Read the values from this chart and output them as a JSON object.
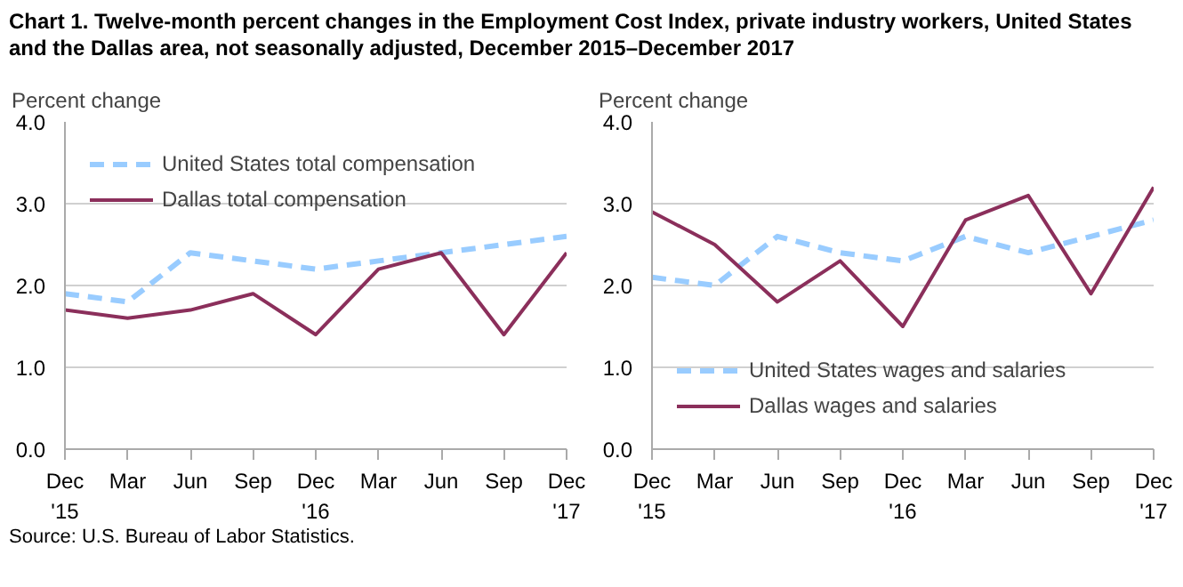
{
  "chart_data": [
    {
      "type": "line",
      "title": "Chart 1. Twelve-month percent changes in the Employment Cost Index, private industry workers, United States and the Dallas area, not seasonally adjusted, December 2015–December 2017",
      "ylabel": "Percent change",
      "categories": [
        "Dec\n'15",
        "Mar",
        "Jun",
        "Sep",
        "Dec\n'16",
        "Mar",
        "Jun",
        "Sep",
        "Dec\n'17"
      ],
      "series": [
        {
          "name": "United States total compensation",
          "color": "#99ccff",
          "line_style": "dashed",
          "values": [
            1.9,
            1.8,
            2.4,
            2.3,
            2.2,
            2.3,
            2.4,
            2.5,
            2.6
          ]
        },
        {
          "name": "Dallas total compensation",
          "color": "#8b2f5b",
          "line_style": "solid",
          "values": [
            1.7,
            1.6,
            1.7,
            1.9,
            1.4,
            2.2,
            2.4,
            1.4,
            2.4
          ]
        }
      ],
      "ylim": [
        0,
        4
      ],
      "yticks": [
        {
          "value": 0,
          "label": "0.0"
        },
        {
          "value": 1,
          "label": "1.0"
        },
        {
          "value": 2,
          "label": "2.0"
        },
        {
          "value": 3,
          "label": "3.0"
        },
        {
          "value": 4,
          "label": "4.0"
        }
      ],
      "grid": "y",
      "legend": "top left",
      "marker": "none",
      "annotations": [
        "Source: U.S. Bureau of Labor Statistics."
      ]
    },
    {
      "type": "line",
      "ylabel": "Percent change",
      "categories": [
        "Dec\n'15",
        "Mar",
        "Jun",
        "Sep",
        "Dec\n'16",
        "Mar",
        "Jun",
        "Sep",
        "Dec\n'17"
      ],
      "series": [
        {
          "name": "United States wages and salaries",
          "color": "#99ccff",
          "line_style": "dashed",
          "values": [
            2.1,
            2.0,
            2.6,
            2.4,
            2.3,
            2.6,
            2.4,
            2.6,
            2.8
          ]
        },
        {
          "name": "Dallas wages and salaries",
          "color": "#8b2f5b",
          "line_style": "solid",
          "values": [
            2.9,
            2.5,
            1.8,
            2.3,
            1.5,
            2.8,
            3.1,
            1.9,
            3.2
          ]
        }
      ],
      "ylim": [
        0,
        4
      ],
      "yticks": [
        {
          "value": 0,
          "label": "0.0"
        },
        {
          "value": 1,
          "label": "1.0"
        },
        {
          "value": 2,
          "label": "2.0"
        },
        {
          "value": 3,
          "label": "3.0"
        },
        {
          "value": 4,
          "label": "4.0"
        }
      ],
      "grid": "y",
      "legend": "bottom left",
      "marker": "none"
    }
  ]
}
